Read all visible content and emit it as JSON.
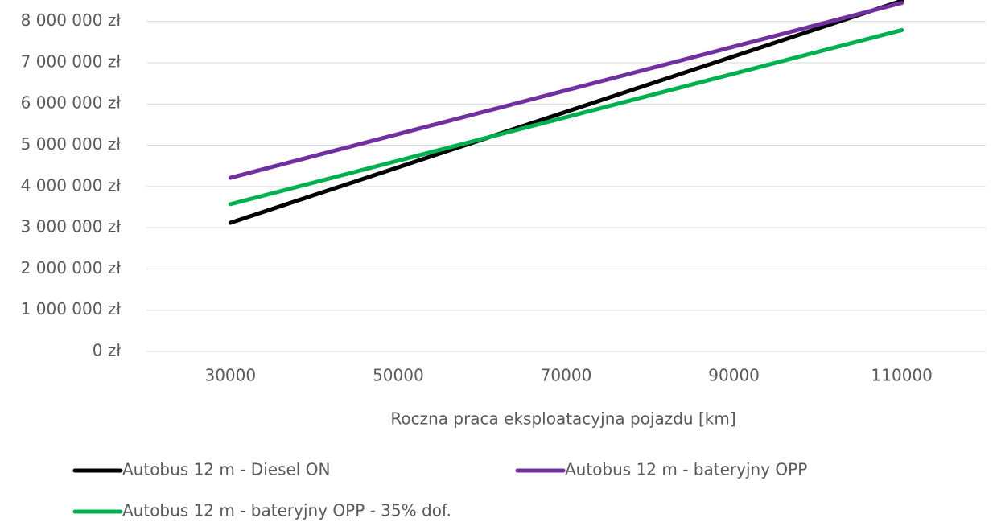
{
  "chart_data": {
    "type": "line",
    "x_label": "Roczna praca eksploatacyjna pojazdu [km]",
    "x": [
      30000,
      50000,
      70000,
      90000,
      110000
    ],
    "series": [
      {
        "name": "Autobus 12 m - Diesel ON",
        "color": "#000000",
        "values": [
          3120000,
          4465000,
          5810000,
          7155000,
          8500000
        ]
      },
      {
        "name": "Autobus 12 m - bateryjny OPP",
        "color": "#7030a0",
        "values": [
          4210000,
          5270000,
          6330000,
          7390000,
          8450000
        ]
      },
      {
        "name": "Autobus 12 m - bateryjny OPP - 35% dof.",
        "color": "#00b050",
        "values": [
          3570000,
          4625000,
          5680000,
          6735000,
          7790000
        ]
      }
    ],
    "xlim": [
      20000,
      120000
    ],
    "xticks": [
      30000,
      50000,
      70000,
      90000,
      110000
    ],
    "ylim": [
      0,
      8500000
    ],
    "yticks": [
      {
        "value": 0,
        "label": "0 zł"
      },
      {
        "value": 1000000,
        "label": "1 000 000 zł"
      },
      {
        "value": 2000000,
        "label": "2 000 000 zł"
      },
      {
        "value": 3000000,
        "label": "3 000 000 zł"
      },
      {
        "value": 4000000,
        "label": "4 000 000 zł"
      },
      {
        "value": 5000000,
        "label": "5 000 000 zł"
      },
      {
        "value": 6000000,
        "label": "6 000 000 zł"
      },
      {
        "value": 7000000,
        "label": "7 000 000 zł"
      },
      {
        "value": 8000000,
        "label": "8 000 000 zł"
      }
    ],
    "grid": true,
    "legend": "bottom"
  }
}
